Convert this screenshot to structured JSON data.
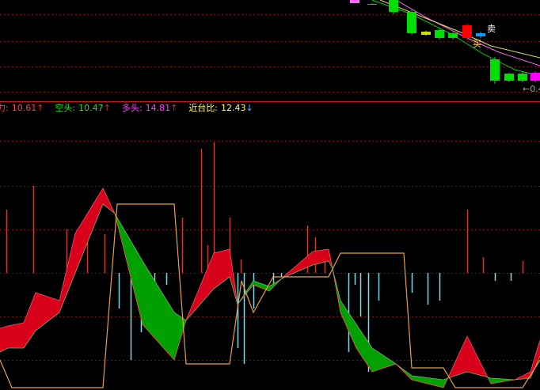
{
  "chart_data": [
    {
      "type": "candlestick",
      "xlim": [
        0,
        682
      ],
      "ylim": [
        0,
        128
      ],
      "yticks": [
        12,
        44,
        76,
        110
      ],
      "x": [
        448,
        470,
        497,
        520,
        538,
        555,
        572,
        590,
        607,
        625,
        643,
        660,
        676
      ],
      "open": [
        128,
        123,
        128,
        113,
        88,
        90,
        86,
        80,
        82,
        53,
        35,
        35,
        36
      ],
      "close": [
        124,
        123,
        113,
        86,
        84,
        80,
        80,
        96,
        86,
        26,
        26,
        26,
        26
      ],
      "high": [
        128,
        124,
        128,
        116,
        89,
        92,
        88,
        98,
        88,
        56,
        36,
        38,
        38
      ],
      "low": [
        124,
        122,
        110,
        84,
        83,
        78,
        78,
        78,
        80,
        22,
        24,
        24,
        24
      ],
      "colors": [
        "#ff66ff",
        "#00e000",
        "#00e000",
        "#00e000",
        "#c8e000",
        "#00e000",
        "#00e000",
        "#ff0000",
        "#00a0ff",
        "#00e000",
        "#00e000",
        "#00e000",
        "#ff00ff"
      ],
      "series": [
        {
          "color": "#00d000",
          "x": [
            470,
            520,
            570,
            610,
            650,
            682
          ],
          "values": [
            128,
            110,
            85,
            60,
            40,
            32
          ]
        },
        {
          "color": "#ff60ff",
          "x": [
            500,
            540,
            590,
            630,
            682
          ],
          "values": [
            128,
            105,
            80,
            62,
            45
          ]
        },
        {
          "color": "#e0e060",
          "x": [
            480,
            530,
            580,
            620,
            682
          ],
          "values": [
            128,
            108,
            88,
            70,
            55
          ]
        }
      ],
      "annotations": [
        {
          "text": "卖",
          "x": 615,
          "y": 91,
          "color": "#ffffff"
        },
        {
          "text": "买",
          "x": 597,
          "y": 72,
          "color": "#ffe060"
        },
        {
          "text": "←0.4",
          "x": 660,
          "y": 15,
          "color": "#a0a0a0"
        }
      ]
    },
    {
      "type": "indicator",
      "xlim": [
        0,
        682
      ],
      "ylim": [
        0,
        340
      ],
      "yticks": [
        35,
        90,
        145,
        200,
        255,
        312
      ],
      "legend": [
        {
          "name": "力:",
          "value": 10.61,
          "arrow": "↑",
          "color": "#ff4040",
          "arrow_color": "#ff2020"
        },
        {
          "name": "空头:",
          "value": 10.47,
          "arrow": "↑",
          "color": "#20e020",
          "arrow_color": "#ff2020"
        },
        {
          "name": "多头:",
          "value": 14.81,
          "arrow": "↑",
          "color": "#ff40ff",
          "arrow_color": "#ff2020"
        },
        {
          "name": "近台比:",
          "value": 12.43,
          "arrow": "↓",
          "color": "#ffff60",
          "arrow_color": "#40c0ff"
        }
      ],
      "bars": {
        "base": 145,
        "up_color": "#c84030",
        "down_color": "#80d8e8",
        "x": [
          8,
          42,
          84,
          110,
          132,
          150,
          165,
          178,
          195,
          210,
          230,
          254,
          262,
          270,
          290,
          300,
          304,
          308,
          320,
          345,
          355,
          388,
          398,
          410,
          440,
          448,
          455,
          465,
          478,
          520,
          540,
          555,
          590,
          610,
          625,
          645,
          660
        ],
        "values": [
          225,
          255,
          200,
          195,
          194,
          100,
          35,
          70,
          110,
          130,
          215,
          302,
          180,
          310,
          215,
          50,
          162,
          30,
          100,
          130,
          140,
          205,
          190,
          160,
          45,
          130,
          90,
          20,
          110,
          120,
          105,
          110,
          225,
          165,
          135,
          135,
          160
        ]
      },
      "band": {
        "up_color": "#d8001a",
        "down_color": "#00a000",
        "x": [
          0,
          10,
          30,
          45,
          75,
          95,
          130,
          145,
          180,
          220,
          235,
          270,
          290,
          300,
          320,
          340,
          360,
          395,
          415,
          420,
          430,
          450,
          470,
          500,
          520,
          560,
          590,
          620,
          650,
          670,
          682
        ],
        "fast": [
          75,
          78,
          82,
          120,
          110,
          195,
          252,
          220,
          80,
          35,
          85,
          170,
          175,
          105,
          130,
          122,
          142,
          172,
          175,
          150,
          95,
          50,
          20,
          30,
          10,
          0,
          65,
          5,
          10,
          20,
          60
        ],
        "slow": [
          45,
          50,
          50,
          72,
          95,
          145,
          232,
          220,
          160,
          95,
          85,
          125,
          140,
          105,
          135,
          128,
          140,
          155,
          160,
          150,
          110,
          80,
          50,
          30,
          15,
          10,
          20,
          12,
          10,
          12,
          40
        ]
      },
      "line": {
        "color": "#e8a040",
        "x": [
          0,
          15,
          130,
          148,
          220,
          235,
          290,
          305,
          320,
          345,
          380,
          415,
          430,
          510,
          520,
          560,
          575,
          660,
          682
        ],
        "values": [
          35,
          0,
          0,
          232,
          232,
          30,
          30,
          135,
          95,
          140,
          140,
          140,
          170,
          170,
          25,
          25,
          0,
          0,
          35
        ]
      }
    }
  ]
}
